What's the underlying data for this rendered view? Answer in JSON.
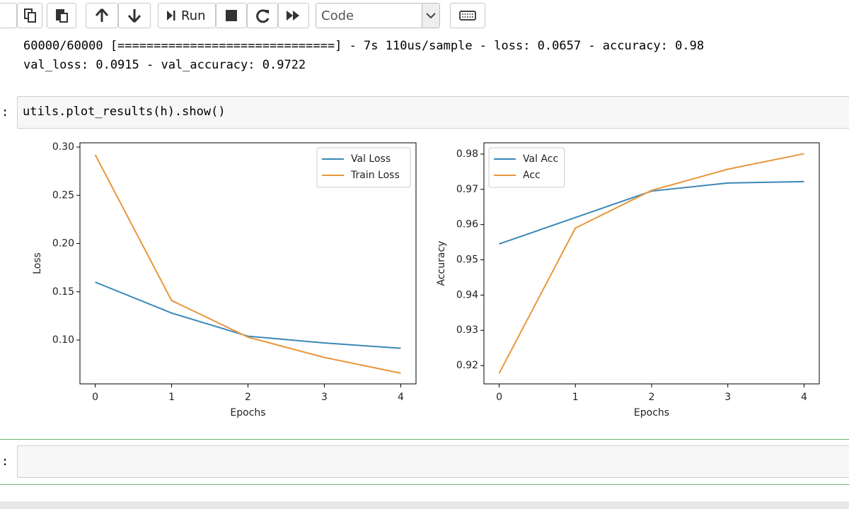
{
  "toolbar": {
    "run": "Run",
    "cell_type": "Code"
  },
  "output": {
    "lines": [
      "60000/60000 [==============================] - 7s 110us/sample - loss: 0.0657 - accuracy: 0.98",
      "val_loss: 0.0915 - val_accuracy: 0.9722"
    ]
  },
  "code_cell": {
    "prompt": ":",
    "code": "utils.plot_results(h).show()"
  },
  "empty_cell": {
    "prompt": ":"
  },
  "chart_data": [
    {
      "type": "line",
      "x_label": "Epochs",
      "y_label": "Loss",
      "x": [
        0,
        1,
        2,
        3,
        4
      ],
      "series": [
        {
          "name": "Val Loss",
          "color": "#3a87b6",
          "values": [
            0.16,
            0.128,
            0.104,
            0.097,
            0.0915
          ]
        },
        {
          "name": "Train Loss",
          "color": "#e8963a",
          "values": [
            0.292,
            0.141,
            0.103,
            0.082,
            0.0657
          ]
        }
      ],
      "xlim": [
        -0.2,
        4.2
      ],
      "xticks": [
        0,
        1,
        2,
        3,
        4
      ],
      "ylim": [
        0.0546,
        0.3044
      ],
      "yticks": [
        {
          "value": 0.1,
          "label": "0.10"
        },
        0.15,
        {
          "value": 0.2,
          "label": "0.20"
        },
        0.25,
        {
          "value": 0.3,
          "label": "0.30"
        }
      ],
      "legend": "upper right"
    },
    {
      "type": "line",
      "x_label": "Epochs",
      "y_label": "Accuracy",
      "x": [
        0,
        1,
        2,
        3,
        4
      ],
      "series": [
        {
          "name": "Val Acc",
          "color": "#3a87b6",
          "values": [
            0.9545,
            0.962,
            0.9695,
            0.9718,
            0.9722
          ]
        },
        {
          "name": "Acc",
          "color": "#e8963a",
          "values": [
            0.9178,
            0.959,
            0.9697,
            0.9757,
            0.9801
          ]
        }
      ],
      "xlim": [
        -0.2,
        4.2
      ],
      "xticks": [
        0,
        1,
        2,
        3,
        4
      ],
      "ylim": [
        0.9148,
        0.9832
      ],
      "yticks": [
        0.92,
        0.93,
        0.94,
        0.95,
        0.96,
        0.97,
        0.98
      ],
      "legend": "upper left"
    }
  ]
}
